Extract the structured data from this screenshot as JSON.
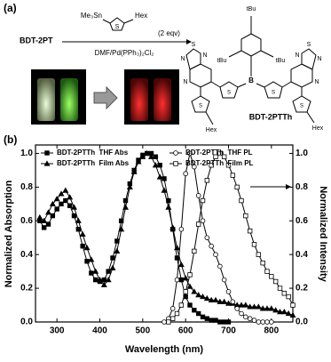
{
  "panel_a": {
    "label": "(a)",
    "reactant": "BDT-2PT",
    "reagent_left": "Me₃Sn",
    "reagent_ring": "S",
    "reagent_right": "Hex",
    "equivalents": "(2 eqv)",
    "conditions": "DMF/Pd(PPh₃)₂Cl₂",
    "product": "BDT-2PTTh",
    "structure_labels": [
      "tBu",
      "tBu",
      "tBu",
      "B",
      "N",
      "S",
      "N",
      "N",
      "S",
      "S",
      "N",
      "S",
      "N",
      "N",
      "S",
      "S",
      "Hex",
      "Hex"
    ]
  },
  "chart_data": {
    "type": "line",
    "panel_label": "(b)",
    "xlabel": "Wavelength (nm)",
    "ylabel": "Normalized Absorption",
    "y2label": "Normalized Intensity",
    "xlim": [
      250,
      850
    ],
    "xticks": [
      300,
      400,
      500,
      600,
      700,
      800
    ],
    "ylim": [
      0,
      1.05
    ],
    "yticks": [
      {
        "value": 0,
        "label": "0.0"
      },
      0.2,
      0.4,
      0.6,
      0.8,
      {
        "value": 1,
        "label": "1.0"
      }
    ],
    "y2lim": [
      0,
      1.05
    ],
    "y2ticks": [
      {
        "value": 0,
        "label": "0.0"
      },
      0.2,
      0.4,
      0.6,
      0.8,
      {
        "value": 1,
        "label": "1.0"
      }
    ],
    "legend": "upper left",
    "grid": false,
    "series": [
      {
        "name": "BDT-2PTTh  THF Abs",
        "color": "#000000",
        "marker": "square",
        "filled": true,
        "axis": "y",
        "x": [
          260,
          270,
          280,
          290,
          300,
          310,
          320,
          330,
          340,
          350,
          360,
          370,
          380,
          390,
          400,
          410,
          420,
          430,
          440,
          450,
          460,
          470,
          480,
          490,
          500,
          510,
          520,
          530,
          540,
          550,
          560,
          570,
          580,
          590,
          600,
          610,
          620,
          630,
          640,
          650,
          660,
          670,
          680,
          690,
          700
        ],
        "values": [
          0.6,
          0.56,
          0.58,
          0.63,
          0.67,
          0.7,
          0.72,
          0.69,
          0.63,
          0.55,
          0.45,
          0.36,
          0.29,
          0.25,
          0.24,
          0.25,
          0.3,
          0.38,
          0.48,
          0.6,
          0.72,
          0.82,
          0.9,
          0.96,
          0.99,
          1.0,
          1.0,
          0.98,
          0.93,
          0.85,
          0.72,
          0.55,
          0.38,
          0.25,
          0.15,
          0.1,
          0.07,
          0.05,
          0.03,
          0.02,
          0.01,
          0.01,
          0.0,
          0.0,
          0.0
        ]
      },
      {
        "name": "BDT-2PTTh  Film Abs",
        "color": "#000000",
        "marker": "triangle",
        "filled": true,
        "axis": "y",
        "x": [
          260,
          270,
          280,
          290,
          300,
          310,
          320,
          330,
          340,
          350,
          360,
          370,
          380,
          390,
          400,
          410,
          420,
          430,
          440,
          450,
          460,
          470,
          480,
          490,
          500,
          510,
          520,
          530,
          540,
          550,
          560,
          570,
          580,
          590,
          600,
          610,
          620,
          630,
          640,
          650,
          660,
          670,
          680,
          690,
          700,
          710,
          720,
          730,
          740,
          750,
          760,
          770,
          780,
          790,
          800,
          810,
          820,
          830,
          840,
          850
        ],
        "values": [
          0.62,
          0.6,
          0.65,
          0.7,
          0.73,
          0.76,
          0.78,
          0.74,
          0.68,
          0.6,
          0.52,
          0.44,
          0.37,
          0.3,
          0.25,
          0.22,
          0.25,
          0.32,
          0.42,
          0.55,
          0.68,
          0.8,
          0.89,
          0.95,
          0.98,
          1.0,
          0.98,
          0.93,
          0.86,
          0.78,
          0.68,
          0.56,
          0.44,
          0.34,
          0.26,
          0.21,
          0.18,
          0.16,
          0.15,
          0.14,
          0.13,
          0.13,
          0.12,
          0.12,
          0.11,
          0.11,
          0.1,
          0.1,
          0.1,
          0.09,
          0.09,
          0.09,
          0.08,
          0.08,
          0.08,
          0.07,
          0.06,
          0.06,
          0.05,
          0.04
        ]
      },
      {
        "name": "BDT-2PTTh  THF PL",
        "color": "#000000",
        "marker": "circle",
        "filled": false,
        "axis": "y2",
        "x": [
          550,
          560,
          570,
          580,
          590,
          600,
          610,
          620,
          630,
          640,
          650,
          660,
          670,
          680,
          690,
          700,
          710,
          720,
          730,
          740,
          750,
          760,
          770,
          780,
          790,
          800
        ],
        "values": [
          0.0,
          0.02,
          0.08,
          0.25,
          0.55,
          0.88,
          1.0,
          0.92,
          0.75,
          0.6,
          0.5,
          0.45,
          0.4,
          0.33,
          0.25,
          0.18,
          0.12,
          0.08,
          0.05,
          0.03,
          0.02,
          0.01,
          0.0,
          0.0,
          0.0,
          0.0
        ]
      },
      {
        "name": "BDT-2PTTh  Film PL",
        "color": "#000000",
        "marker": "square",
        "filled": false,
        "axis": "y2",
        "x": [
          560,
          570,
          580,
          590,
          600,
          610,
          620,
          630,
          640,
          650,
          660,
          670,
          680,
          690,
          700,
          710,
          720,
          730,
          740,
          750,
          760,
          770,
          780,
          790,
          800,
          810,
          820,
          830,
          840,
          850
        ],
        "values": [
          0.0,
          0.02,
          0.05,
          0.1,
          0.18,
          0.28,
          0.42,
          0.58,
          0.72,
          0.84,
          0.93,
          0.98,
          1.0,
          0.98,
          0.93,
          0.87,
          0.8,
          0.72,
          0.63,
          0.54,
          0.46,
          0.4,
          0.35,
          0.3,
          0.27,
          0.24,
          0.2,
          0.17,
          0.15,
          0.1
        ]
      }
    ]
  }
}
